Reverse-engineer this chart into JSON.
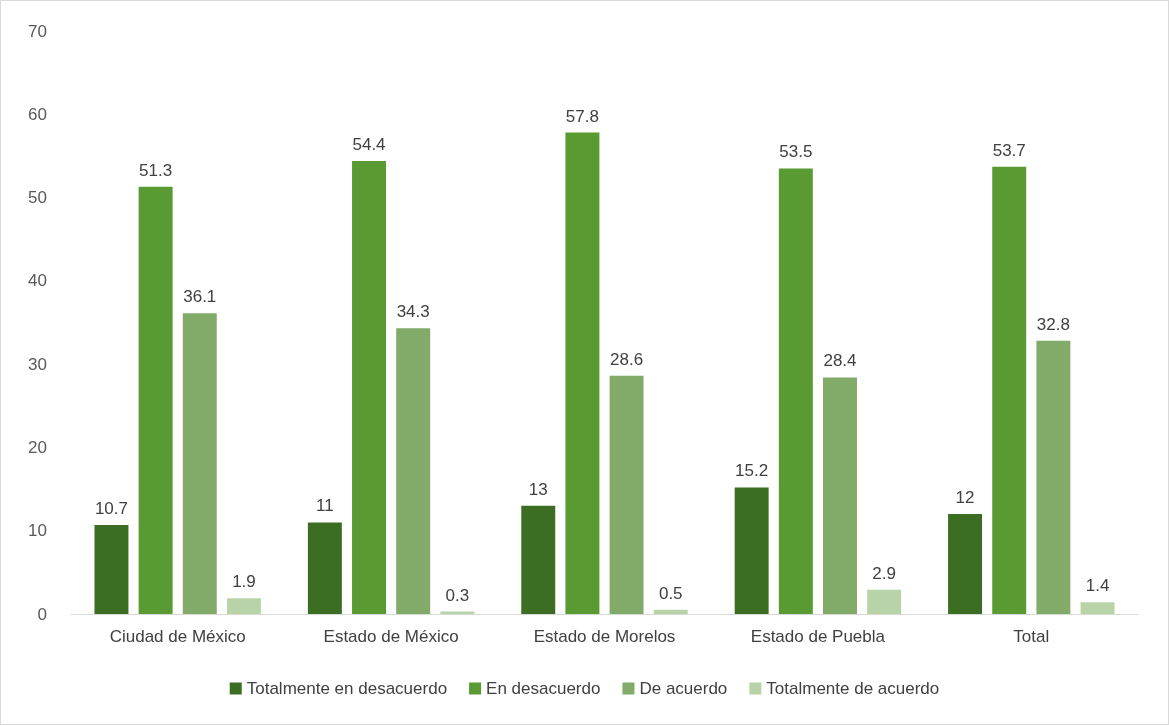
{
  "chart_data": {
    "type": "bar",
    "categories": [
      "Ciudad de México",
      "Estado de México",
      "Estado de Morelos",
      "Estado de Puebla",
      "Total"
    ],
    "series": [
      {
        "name": "Totalmente en desacuerdo",
        "color": "#3b6e22",
        "values": [
          10.7,
          11,
          13,
          15.2,
          12
        ]
      },
      {
        "name": "En desacuerdo",
        "color": "#5a9a32",
        "values": [
          51.3,
          54.4,
          57.8,
          53.5,
          53.7
        ]
      },
      {
        "name": "De acuerdo",
        "color": "#82ab6a",
        "values": [
          36.1,
          34.3,
          28.6,
          28.4,
          32.8
        ]
      },
      {
        "name": "Totalmente de acuerdo",
        "color": "#b9d3a8",
        "values": [
          1.9,
          0.3,
          0.5,
          2.9,
          1.4
        ]
      }
    ],
    "ylim": [
      0,
      70
    ],
    "yticks": [
      0,
      10,
      20,
      30,
      40,
      50,
      60,
      70
    ],
    "grid": false,
    "legend": "bottom",
    "data_labels": true
  }
}
